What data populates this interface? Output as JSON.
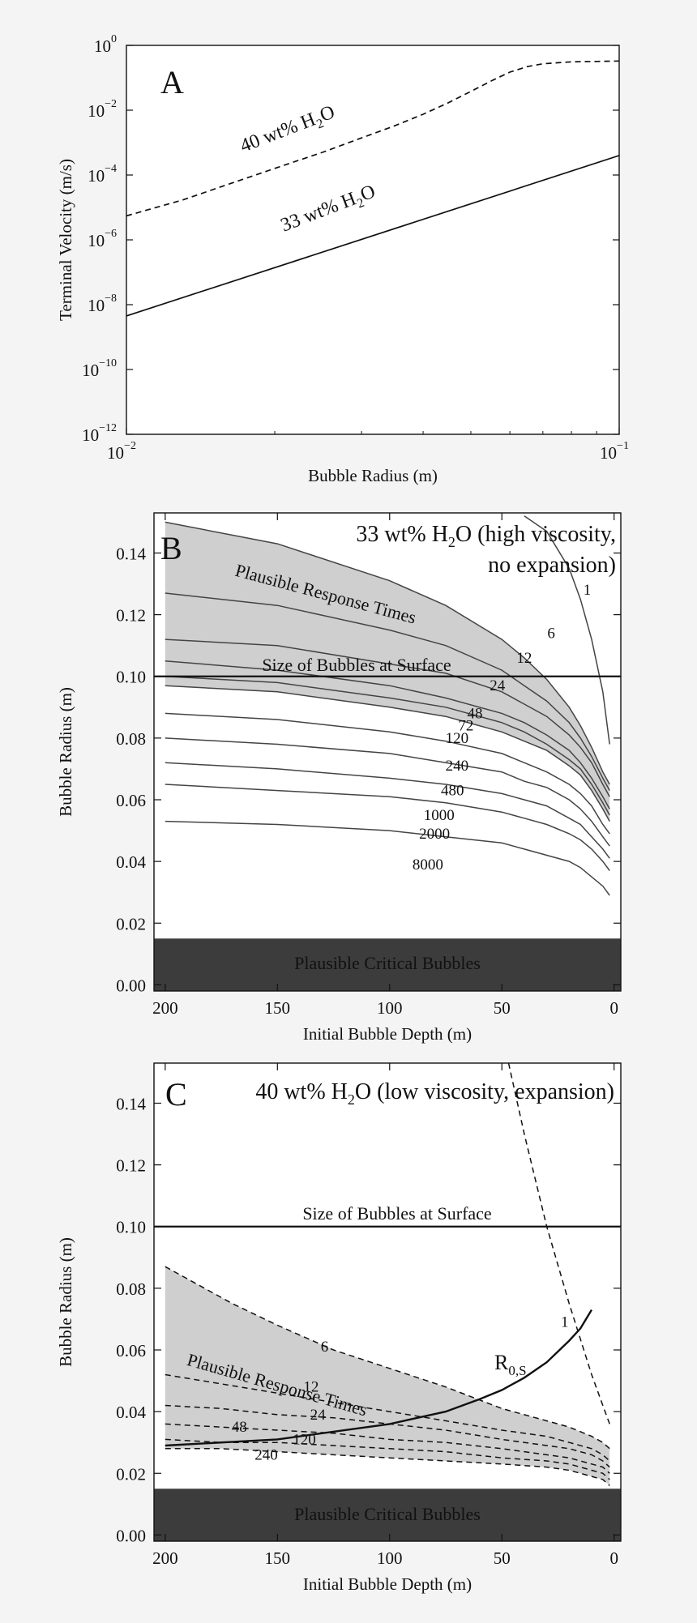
{
  "chart_data": [
    {
      "panel": "A",
      "type": "line",
      "xlabel": "Bubble Radius (m)",
      "ylabel": "Terminal Velocity (m/s)",
      "xscale": "log",
      "yscale": "log",
      "xlim": [
        0.01,
        0.1
      ],
      "ylim": [
        1e-12,
        1
      ],
      "x_ticks": [
        {
          "base": "10",
          "exp": "−2",
          "v": 0.01
        },
        {
          "base": "10",
          "exp": "−1",
          "v": 0.1
        }
      ],
      "y_ticks": [
        {
          "base": "10",
          "exp": "0",
          "v": 1
        },
        {
          "base": "10",
          "exp": "−2",
          "v": 0.01
        },
        {
          "base": "10",
          "exp": "−4",
          "v": 0.0001
        },
        {
          "base": "10",
          "exp": "−6",
          "v": 1e-06
        },
        {
          "base": "10",
          "exp": "−8",
          "v": 1e-08
        },
        {
          "base": "10",
          "exp": "−10",
          "v": 1e-10
        },
        {
          "base": "10",
          "exp": "−12",
          "v": 1e-12
        }
      ],
      "series": [
        {
          "label_main": "40 wt% H",
          "label_sub": "2",
          "label_end": "O",
          "style": "dashed",
          "x": [
            0.01,
            0.013,
            0.016,
            0.02,
            0.025,
            0.03,
            0.035,
            0.04,
            0.045,
            0.05,
            0.055,
            0.06,
            0.065,
            0.07,
            0.08,
            0.09,
            0.1
          ],
          "y": [
            5.5e-06,
            1.7e-05,
            5e-05,
            0.00016,
            0.0005,
            0.0014,
            0.0033,
            0.0075,
            0.017,
            0.038,
            0.08,
            0.15,
            0.22,
            0.27,
            0.31,
            0.32,
            0.33
          ]
        },
        {
          "label_main": "33 wt% H",
          "label_sub": "2",
          "label_end": "O",
          "style": "solid",
          "x": [
            0.01,
            0.1
          ],
          "y": [
            4.5e-09,
            0.0004
          ]
        }
      ]
    },
    {
      "panel": "B",
      "type": "line",
      "title_main": "33 wt% H",
      "title_sub": "2",
      "title_end": "O (high viscosity,",
      "title_line2": "no expansion)",
      "xlabel": "Initial Bubble Depth (m)",
      "ylabel": "Bubble Radius (m)",
      "xlim": [
        205,
        -3
      ],
      "ylim": [
        -0.002,
        0.153
      ],
      "x_ticks": [
        "200",
        "150",
        "100",
        "50",
        "0"
      ],
      "y_ticks": [
        "0.00",
        "0.02",
        "0.04",
        "0.06",
        "0.08",
        "0.10",
        "0.12",
        "0.14"
      ],
      "surface_line": {
        "y": 0.1,
        "label": "Size of Bubbles at Surface"
      },
      "critical_band": {
        "y": [
          -0.002,
          0.015
        ],
        "label": "Plausible Critical Bubbles"
      },
      "region_label": "Plausible Response Times",
      "contours": [
        {
          "label": "1",
          "x": [
            40,
            30,
            20,
            15,
            10,
            5,
            2
          ],
          "y": [
            0.152,
            0.147,
            0.135,
            0.125,
            0.112,
            0.095,
            0.078
          ]
        },
        {
          "label": "6",
          "x": [
            200,
            150,
            100,
            75,
            50,
            40,
            30,
            20,
            15,
            10,
            5,
            2
          ],
          "y": [
            0.15,
            0.143,
            0.131,
            0.123,
            0.112,
            0.106,
            0.099,
            0.09,
            0.084,
            0.077,
            0.069,
            0.065
          ]
        },
        {
          "label": "12",
          "x": [
            200,
            150,
            100,
            75,
            50,
            40,
            30,
            20,
            15,
            10,
            5,
            2
          ],
          "y": [
            0.127,
            0.123,
            0.115,
            0.11,
            0.102,
            0.097,
            0.092,
            0.085,
            0.08,
            0.074,
            0.067,
            0.063
          ]
        },
        {
          "label": "24",
          "x": [
            200,
            150,
            100,
            75,
            50,
            40,
            30,
            20,
            15,
            10,
            5,
            2
          ],
          "y": [
            0.112,
            0.11,
            0.104,
            0.101,
            0.095,
            0.091,
            0.087,
            0.081,
            0.077,
            0.072,
            0.065,
            0.061
          ]
        },
        {
          "label": "48",
          "x": [
            200,
            150,
            100,
            75,
            50,
            40,
            30,
            20,
            15,
            10,
            5,
            2
          ],
          "y": [
            0.105,
            0.102,
            0.097,
            0.093,
            0.088,
            0.085,
            0.081,
            0.076,
            0.072,
            0.067,
            0.061,
            0.057
          ]
        },
        {
          "label": "72",
          "x": [
            200,
            150,
            100,
            75,
            50,
            40,
            30,
            20,
            15,
            10,
            5,
            2
          ],
          "y": [
            0.1,
            0.098,
            0.093,
            0.09,
            0.085,
            0.082,
            0.078,
            0.073,
            0.07,
            0.065,
            0.059,
            0.055
          ]
        },
        {
          "label": "120",
          "x": [
            200,
            150,
            100,
            75,
            50,
            40,
            30,
            20,
            15,
            10,
            5,
            2
          ],
          "y": [
            0.097,
            0.095,
            0.09,
            0.087,
            0.082,
            0.079,
            0.076,
            0.071,
            0.068,
            0.063,
            0.057,
            0.053
          ]
        },
        {
          "label": "240",
          "x": [
            200,
            150,
            100,
            75,
            50,
            40,
            30,
            20,
            15,
            10,
            5,
            2
          ],
          "y": [
            0.088,
            0.086,
            0.082,
            0.079,
            0.075,
            0.072,
            0.069,
            0.065,
            0.062,
            0.058,
            0.052,
            0.049
          ]
        },
        {
          "label": "480",
          "x": [
            200,
            150,
            100,
            75,
            50,
            40,
            30,
            20,
            15,
            10,
            5,
            2
          ],
          "y": [
            0.08,
            0.078,
            0.075,
            0.072,
            0.069,
            0.066,
            0.064,
            0.06,
            0.057,
            0.053,
            0.048,
            0.045
          ]
        },
        {
          "label": "1000",
          "x": [
            200,
            150,
            100,
            75,
            50,
            40,
            30,
            20,
            15,
            10,
            5,
            2
          ],
          "y": [
            0.072,
            0.07,
            0.067,
            0.065,
            0.062,
            0.06,
            0.058,
            0.054,
            0.052,
            0.048,
            0.044,
            0.041
          ]
        },
        {
          "label": "2000",
          "x": [
            200,
            150,
            100,
            75,
            50,
            40,
            30,
            20,
            15,
            10,
            5,
            2
          ],
          "y": [
            0.065,
            0.063,
            0.061,
            0.059,
            0.056,
            0.054,
            0.052,
            0.049,
            0.047,
            0.044,
            0.04,
            0.037
          ]
        },
        {
          "label": "8000",
          "x": [
            200,
            150,
            100,
            75,
            50,
            40,
            30,
            20,
            15,
            10,
            5,
            2
          ],
          "y": [
            0.053,
            0.052,
            0.05,
            0.048,
            0.046,
            0.044,
            0.042,
            0.04,
            0.038,
            0.035,
            0.032,
            0.029
          ]
        }
      ]
    },
    {
      "panel": "C",
      "type": "line",
      "title_main": "40 wt% H",
      "title_sub": "2",
      "title_end": "O (low viscosity, expansion)",
      "xlabel": "Initial Bubble Depth (m)",
      "ylabel": "Bubble Radius (m)",
      "xlim": [
        205,
        -3
      ],
      "ylim": [
        -0.002,
        0.153
      ],
      "x_ticks": [
        "200",
        "150",
        "100",
        "50",
        "0"
      ],
      "y_ticks": [
        "0.00",
        "0.02",
        "0.04",
        "0.06",
        "0.08",
        "0.10",
        "0.12",
        "0.14"
      ],
      "surface_line": {
        "y": 0.1,
        "label": "Size of Bubbles at Surface"
      },
      "critical_band": {
        "y": [
          -0.002,
          0.015
        ],
        "label": "Plausible Critical Bubbles"
      },
      "region_label": "Plausible Response Times",
      "r0s_curve": {
        "label_main": "R",
        "label_sub": "0,S",
        "x": [
          200,
          150,
          100,
          75,
          60,
          50,
          40,
          30,
          20,
          15,
          10
        ],
        "y": [
          0.029,
          0.031,
          0.036,
          0.04,
          0.044,
          0.047,
          0.051,
          0.056,
          0.063,
          0.067,
          0.073
        ]
      },
      "contours": [
        {
          "label": "1",
          "x": [
            47,
            40,
            30,
            20,
            10,
            5,
            2
          ],
          "y": [
            0.153,
            0.13,
            0.1,
            0.075,
            0.052,
            0.042,
            0.036
          ]
        },
        {
          "label": "6",
          "x": [
            200,
            170,
            150,
            125,
            100,
            75,
            50,
            40,
            30,
            20,
            10,
            5,
            2
          ],
          "y": [
            0.087,
            0.075,
            0.068,
            0.06,
            0.054,
            0.048,
            0.041,
            0.039,
            0.037,
            0.035,
            0.032,
            0.03,
            0.028
          ]
        },
        {
          "label": "12",
          "x": [
            200,
            175,
            150,
            125,
            100,
            75,
            50,
            30,
            20,
            10,
            5,
            2
          ],
          "y": [
            0.052,
            0.049,
            0.046,
            0.043,
            0.04,
            0.037,
            0.034,
            0.032,
            0.03,
            0.028,
            0.026,
            0.024
          ]
        },
        {
          "label": "24",
          "x": [
            200,
            175,
            150,
            125,
            100,
            75,
            50,
            30,
            20,
            10,
            5,
            2
          ],
          "y": [
            0.042,
            0.041,
            0.039,
            0.038,
            0.036,
            0.034,
            0.031,
            0.029,
            0.028,
            0.026,
            0.024,
            0.022
          ]
        },
        {
          "label": "48",
          "x": [
            200,
            175,
            150,
            125,
            100,
            75,
            50,
            30,
            20,
            10,
            5,
            2
          ],
          "y": [
            0.036,
            0.035,
            0.034,
            0.033,
            0.031,
            0.03,
            0.028,
            0.026,
            0.025,
            0.023,
            0.022,
            0.02
          ]
        },
        {
          "label": "120",
          "x": [
            200,
            175,
            150,
            125,
            100,
            75,
            50,
            30,
            20,
            10,
            5,
            2
          ],
          "y": [
            0.031,
            0.03,
            0.03,
            0.029,
            0.028,
            0.027,
            0.025,
            0.024,
            0.023,
            0.021,
            0.02,
            0.018
          ]
        },
        {
          "label": "240",
          "x": [
            200,
            175,
            150,
            125,
            100,
            75,
            50,
            30,
            20,
            10,
            5,
            2
          ],
          "y": [
            0.028,
            0.028,
            0.027,
            0.026,
            0.025,
            0.024,
            0.023,
            0.022,
            0.021,
            0.019,
            0.018,
            0.016
          ]
        }
      ]
    }
  ]
}
